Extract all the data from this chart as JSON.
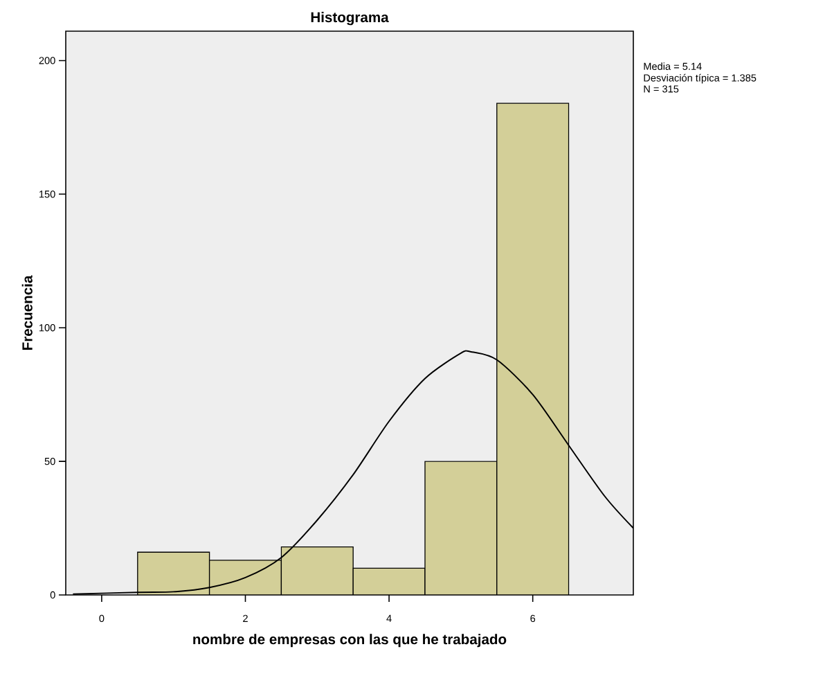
{
  "chart_data": {
    "type": "histogram",
    "title": "Histograma",
    "xlabel": "nombre de empresas con las que he trabajado",
    "ylabel": "Frecuencia",
    "bins": [
      0.5,
      1.5,
      2.5,
      3.5,
      4.5,
      5.5,
      6.5
    ],
    "values": [
      16,
      13,
      18,
      10,
      50,
      184
    ],
    "color": "#d3cf98",
    "series": [
      {
        "type": "line",
        "color": "#000000",
        "x": [
          -0.4,
          0.5,
          1,
          1.5,
          2,
          2.5,
          3,
          3.5,
          4,
          4.5,
          5,
          5.14,
          5.5,
          6,
          6.5,
          7,
          7.4
        ],
        "values": [
          0.3,
          1,
          1.2,
          2.8,
          6.5,
          14,
          28,
          45,
          65,
          81,
          90.5,
          91,
          88,
          75,
          56,
          37,
          25
        ]
      }
    ],
    "xlim": [
      -0.5,
      7.4
    ],
    "ylim": [
      0,
      211
    ],
    "xticks": [
      0,
      2,
      4,
      6
    ],
    "yticks": [
      0,
      50,
      100,
      150,
      200
    ],
    "grid": false,
    "marker": "none",
    "line_style": "solid",
    "annotations": [
      "Media = 5.14",
      "Desviación típica = 1.385",
      "N = 315"
    ]
  }
}
